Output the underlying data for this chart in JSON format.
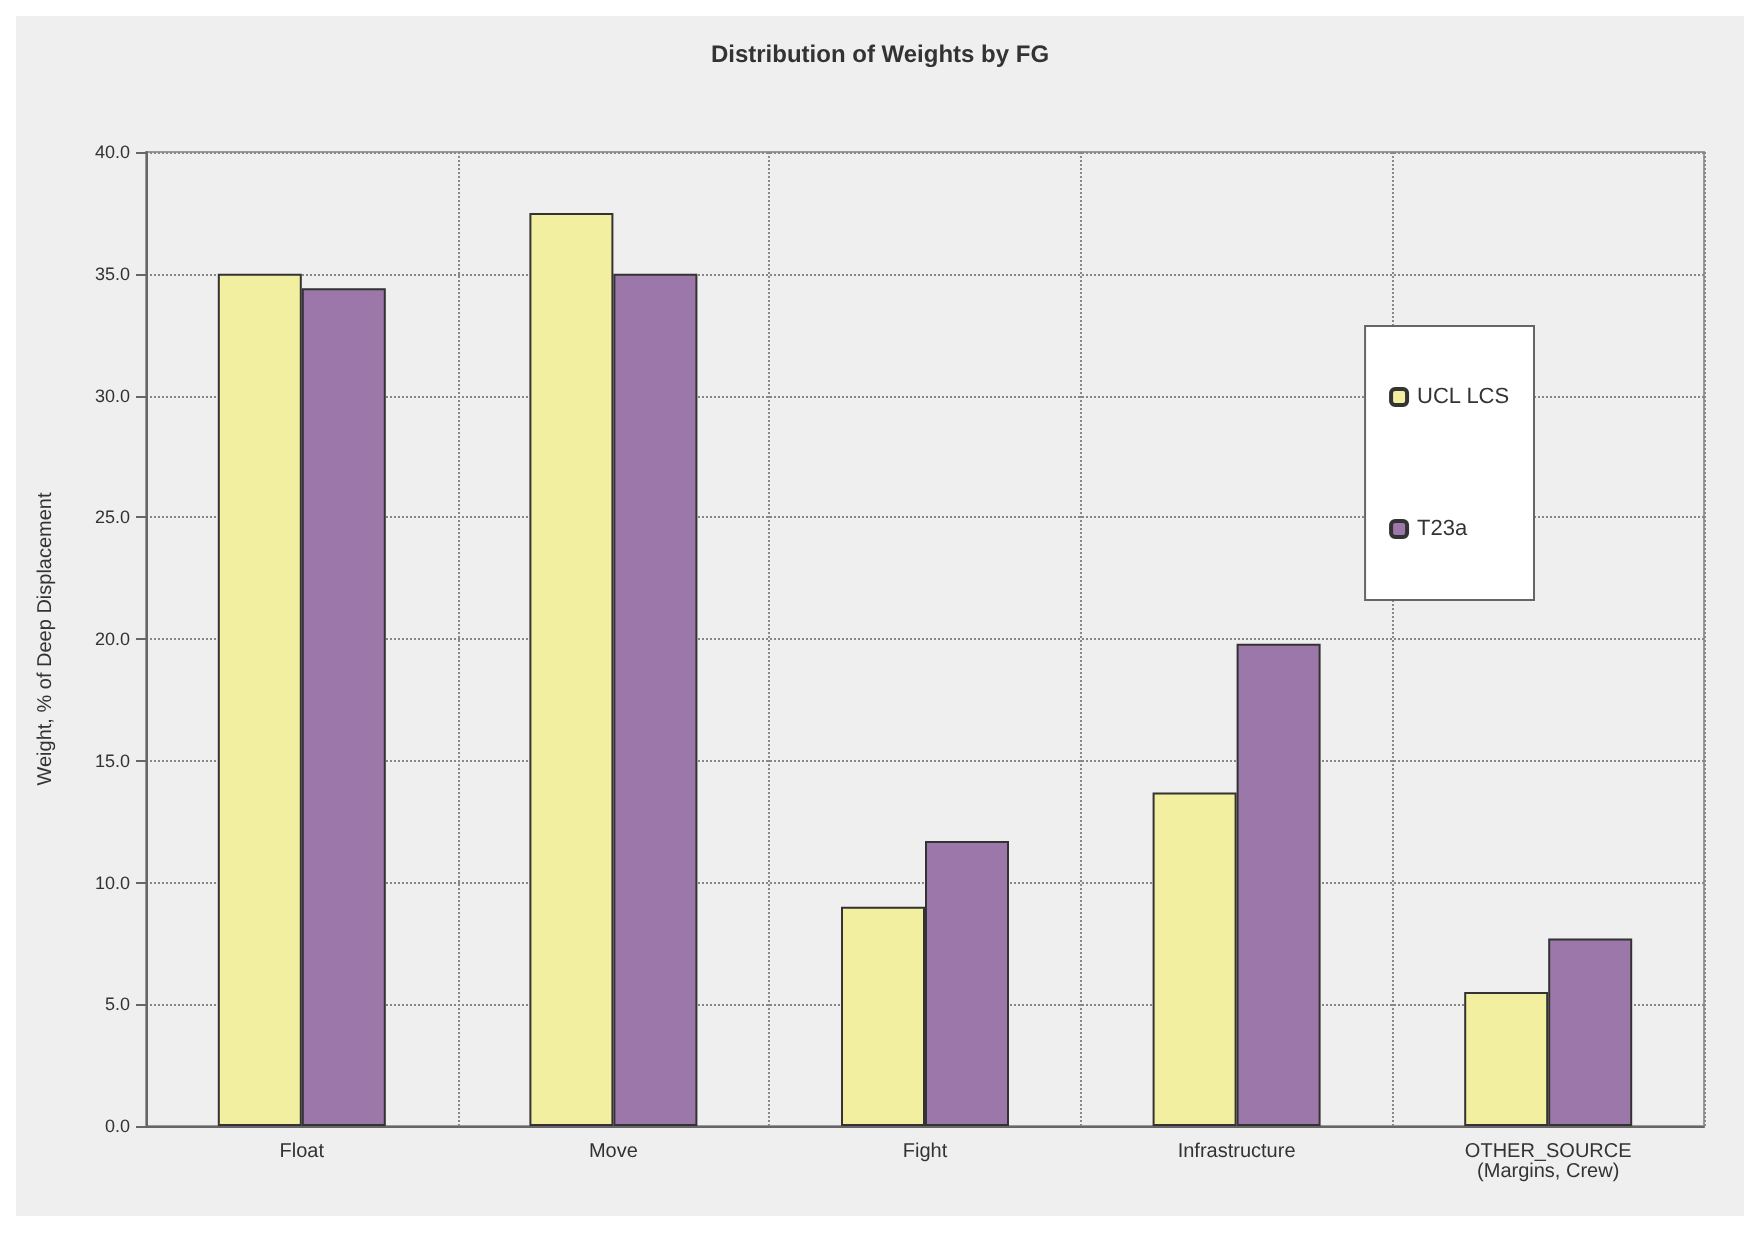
{
  "chart_data": {
    "type": "bar",
    "title": "Distribution of Weights by FG",
    "ylabel": "Weight, % of Deep Displacement",
    "categories": [
      "Float",
      "Move",
      "Fight",
      "Infrastructure",
      "OTHER_SOURCE\n(Margins, Crew)"
    ],
    "series": [
      {
        "name": "UCL LCS",
        "color": "#f2efa0",
        "values": [
          35.0,
          37.5,
          9.0,
          13.7,
          5.5
        ]
      },
      {
        "name": "T23a",
        "color": "#9c78aa",
        "values": [
          34.4,
          35.0,
          11.7,
          19.8,
          7.7
        ]
      }
    ],
    "ylim": [
      0,
      40
    ],
    "yticks": [
      {
        "value": 0,
        "label": "0.0"
      },
      {
        "value": 5,
        "label": "5.0"
      },
      {
        "value": 10,
        "label": "10.0"
      },
      {
        "value": 15,
        "label": "15.0"
      },
      {
        "value": 20,
        "label": "20.0"
      },
      {
        "value": 25,
        "label": "25.0"
      },
      {
        "value": 30,
        "label": "30.0"
      },
      {
        "value": 35,
        "label": "35.0"
      },
      {
        "value": 40,
        "label": "40.0"
      }
    ],
    "grid": true,
    "legend": "top right"
  }
}
